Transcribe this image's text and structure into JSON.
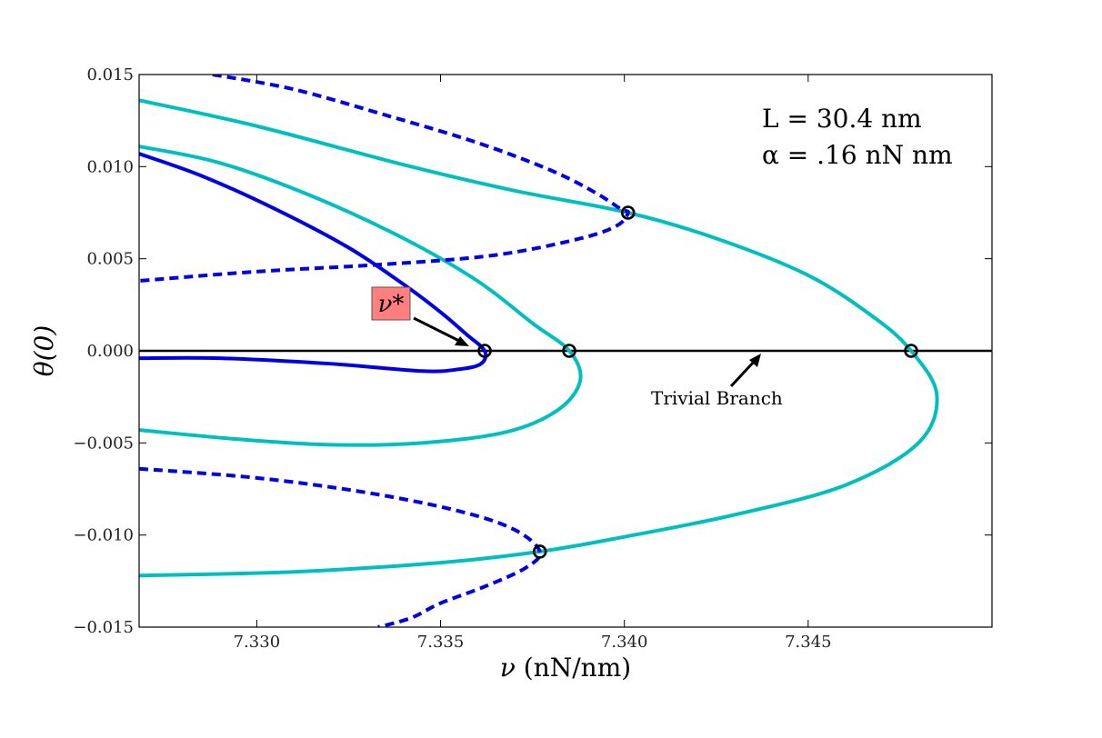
{
  "chart_data": {
    "type": "line",
    "xlabel_symbol": "ν",
    "xlabel_unit": "(nN/nm)",
    "ylabel": "θ(0)",
    "xlim": [
      7.3268,
      7.35
    ],
    "ylim": [
      -0.015,
      0.015
    ],
    "x_ticks": [
      7.33,
      7.335,
      7.34,
      7.345
    ],
    "x_tick_labels": [
      "7.330",
      "7.335",
      "7.340",
      "7.345"
    ],
    "y_ticks": [
      0.015,
      0.01,
      0.005,
      0.0,
      -0.005,
      -0.01,
      -0.015
    ],
    "y_tick_labels": [
      "0.015",
      "0.010",
      "0.005",
      "0.000",
      "−0.005",
      "−0.010",
      "−0.015"
    ],
    "grid": false,
    "annotations": {
      "params_line1": "L = 30.4 nm",
      "params_line2": "α = .16 nN nm",
      "nu_star": "ν*",
      "trivial_branch": "Trivial Branch"
    },
    "colors": {
      "stable_branch": "#00bfbf",
      "unstable_branch": "#0000e6",
      "trivial_branch": "#000000",
      "nu_star_box": "#ff7f7f"
    },
    "series": [
      {
        "role": "trivial",
        "color": "#000000",
        "dash": false,
        "points": [
          [
            7.3268,
            0.0
          ],
          [
            7.35,
            0.0
          ]
        ]
      },
      {
        "role": "blue-solid",
        "color": "#0000e6",
        "dash": false,
        "points": [
          [
            7.3268,
            0.0107
          ],
          [
            7.3285,
            0.0095
          ],
          [
            7.3305,
            0.0077
          ],
          [
            7.3325,
            0.0056
          ],
          [
            7.334,
            0.0036
          ],
          [
            7.335,
            0.0021
          ],
          [
            7.3357,
            0.0009
          ],
          [
            7.3362,
            0.0
          ],
          [
            7.3361,
            -0.0007
          ],
          [
            7.3355,
            -0.001
          ],
          [
            7.3345,
            -0.0011
          ],
          [
            7.332,
            -0.0007
          ],
          [
            7.329,
            -0.0004
          ],
          [
            7.3268,
            -0.0004
          ]
        ]
      },
      {
        "role": "cyan-inner",
        "color": "#00bfbf",
        "dash": false,
        "points": [
          [
            7.3268,
            0.0111
          ],
          [
            7.329,
            0.0102
          ],
          [
            7.3315,
            0.0084
          ],
          [
            7.334,
            0.0061
          ],
          [
            7.336,
            0.0038
          ],
          [
            7.3375,
            0.0015
          ],
          [
            7.3385,
            0.0
          ],
          [
            7.3388,
            -0.0016
          ],
          [
            7.3382,
            -0.0032
          ],
          [
            7.3368,
            -0.0044
          ],
          [
            7.3345,
            -0.005
          ],
          [
            7.332,
            -0.0051
          ],
          [
            7.3295,
            -0.0048
          ],
          [
            7.3268,
            -0.0043
          ]
        ]
      },
      {
        "role": "cyan-outer",
        "color": "#00bfbf",
        "dash": false,
        "points": [
          [
            7.3268,
            0.0136
          ],
          [
            7.33,
            0.0122
          ],
          [
            7.334,
            0.0101
          ],
          [
            7.337,
            0.0087
          ],
          [
            7.3401,
            0.0075
          ],
          [
            7.3425,
            0.0061
          ],
          [
            7.345,
            0.0041
          ],
          [
            7.3468,
            0.0018
          ],
          [
            7.3478,
            0.0
          ],
          [
            7.3485,
            -0.0024
          ],
          [
            7.348,
            -0.005
          ],
          [
            7.346,
            -0.0073
          ],
          [
            7.343,
            -0.0089
          ],
          [
            7.34,
            -0.0101
          ],
          [
            7.3377,
            -0.0109
          ],
          [
            7.335,
            -0.0115
          ],
          [
            7.331,
            -0.012
          ],
          [
            7.3268,
            -0.0122
          ]
        ]
      },
      {
        "role": "blue-dashed-top",
        "color": "#0000e6",
        "dash": true,
        "points": [
          [
            7.3288,
            0.015
          ],
          [
            7.331,
            0.0142
          ],
          [
            7.3335,
            0.0128
          ],
          [
            7.336,
            0.0113
          ],
          [
            7.338,
            0.0098
          ],
          [
            7.3392,
            0.0086
          ],
          [
            7.3399,
            0.0077
          ],
          [
            7.3401,
            0.0075
          ],
          [
            7.3398,
            0.0068
          ],
          [
            7.3388,
            0.0061
          ],
          [
            7.3365,
            0.0052
          ],
          [
            7.3335,
            0.0047
          ],
          [
            7.33,
            0.0043
          ],
          [
            7.3268,
            0.0038
          ]
        ]
      },
      {
        "role": "blue-dashed-bottom",
        "color": "#0000e6",
        "dash": true,
        "points": [
          [
            7.3268,
            -0.0064
          ],
          [
            7.33,
            -0.0069
          ],
          [
            7.333,
            -0.0077
          ],
          [
            7.3355,
            -0.0087
          ],
          [
            7.337,
            -0.0097
          ],
          [
            7.3377,
            -0.0109
          ],
          [
            7.3373,
            -0.0118
          ],
          [
            7.3362,
            -0.0128
          ],
          [
            7.335,
            -0.0137
          ],
          [
            7.3342,
            -0.0145
          ],
          [
            7.3333,
            -0.015
          ]
        ]
      }
    ],
    "markers": [
      {
        "x": 7.3362,
        "y": 0.0
      },
      {
        "x": 7.3385,
        "y": 0.0
      },
      {
        "x": 7.3478,
        "y": 0.0
      },
      {
        "x": 7.3401,
        "y": 0.0075
      },
      {
        "x": 7.3377,
        "y": -0.0109
      }
    ]
  }
}
